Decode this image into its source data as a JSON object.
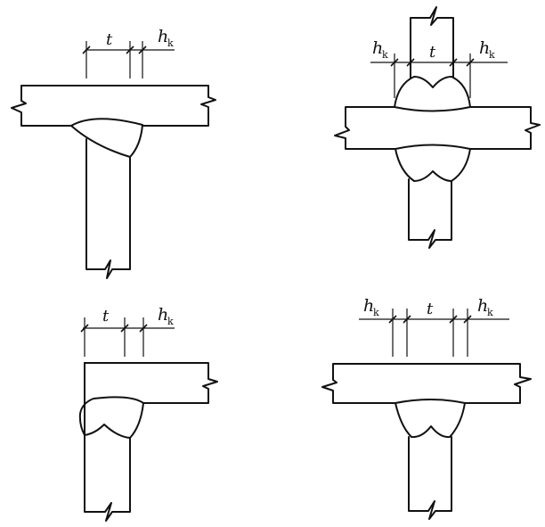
{
  "labels": {
    "h": "h",
    "k": "k",
    "t": "t"
  }
}
